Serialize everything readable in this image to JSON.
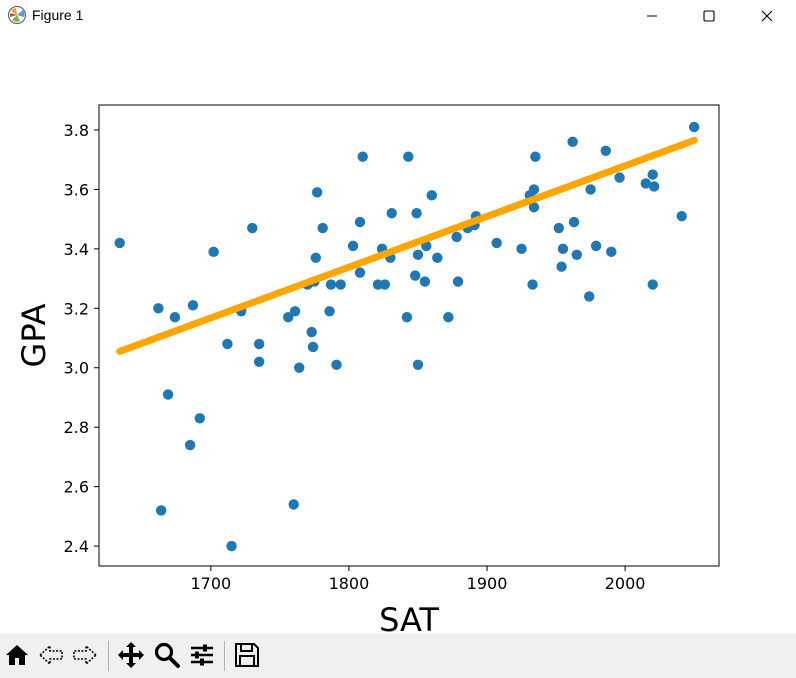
{
  "window": {
    "title": "Figure 1"
  },
  "icons": {
    "app": "matplotlib-figure-icon",
    "minimize": "minimize-icon",
    "maximize": "maximize-icon",
    "close": "close-icon"
  },
  "toolbar": {
    "buttons": [
      {
        "name": "home-icon",
        "tooltip": "Home"
      },
      {
        "name": "back-icon",
        "tooltip": "Back"
      },
      {
        "name": "forward-icon",
        "tooltip": "Forward"
      },
      {
        "name": "pan-icon",
        "tooltip": "Pan"
      },
      {
        "name": "zoom-icon",
        "tooltip": "Zoom"
      },
      {
        "name": "configure-subplots-icon",
        "tooltip": "Subplots"
      },
      {
        "name": "save-icon",
        "tooltip": "Save"
      }
    ]
  },
  "chart_data": {
    "type": "scatter",
    "xlabel": "SAT",
    "ylabel": "GPA",
    "xlim": [
      1619,
      2068
    ],
    "ylim": [
      2.333,
      3.884
    ],
    "xticks": [
      1700,
      1800,
      1900,
      2000
    ],
    "yticks": [
      2.4,
      2.6,
      2.8,
      3.0,
      3.2,
      3.4,
      3.6,
      3.8
    ],
    "grid": false,
    "scatter_color": "#1f77b4",
    "line_color": "#ffa500",
    "points": [
      [
        1634,
        3.42
      ],
      [
        1662,
        3.2
      ],
      [
        1664,
        2.52
      ],
      [
        1669,
        2.91
      ],
      [
        1674,
        3.17
      ],
      [
        1685,
        2.74
      ],
      [
        1687,
        3.21
      ],
      [
        1692,
        2.83
      ],
      [
        1702,
        3.39
      ],
      [
        1712,
        3.08
      ],
      [
        1715,
        2.4
      ],
      [
        1722,
        3.19
      ],
      [
        1730,
        3.47
      ],
      [
        1735,
        3.02
      ],
      [
        1735,
        3.08
      ],
      [
        1756,
        3.17
      ],
      [
        1760,
        2.54
      ],
      [
        1761,
        3.19
      ],
      [
        1764,
        3.0
      ],
      [
        1770,
        3.28
      ],
      [
        1773,
        3.12
      ],
      [
        1774,
        3.07
      ],
      [
        1775,
        3.29
      ],
      [
        1776,
        3.37
      ],
      [
        1777,
        3.59
      ],
      [
        1781,
        3.47
      ],
      [
        1786,
        3.19
      ],
      [
        1787,
        3.28
      ],
      [
        1791,
        3.01
      ],
      [
        1794,
        3.28
      ],
      [
        1803,
        3.41
      ],
      [
        1808,
        3.32
      ],
      [
        1808,
        3.49
      ],
      [
        1810,
        3.71
      ],
      [
        1821,
        3.28
      ],
      [
        1824,
        3.4
      ],
      [
        1826,
        3.28
      ],
      [
        1830,
        3.37
      ],
      [
        1831,
        3.52
      ],
      [
        1842,
        3.17
      ],
      [
        1843,
        3.71
      ],
      [
        1848,
        3.31
      ],
      [
        1849,
        3.52
      ],
      [
        1850,
        3.01
      ],
      [
        1850,
        3.38
      ],
      [
        1855,
        3.29
      ],
      [
        1856,
        3.41
      ],
      [
        1860,
        3.58
      ],
      [
        1864,
        3.37
      ],
      [
        1872,
        3.17
      ],
      [
        1878,
        3.44
      ],
      [
        1879,
        3.29
      ],
      [
        1886,
        3.47
      ],
      [
        1888,
        3.48
      ],
      [
        1891,
        3.48
      ],
      [
        1892,
        3.51
      ],
      [
        1907,
        3.42
      ],
      [
        1925,
        3.4
      ],
      [
        1931,
        3.58
      ],
      [
        1933,
        3.28
      ],
      [
        1934,
        3.6
      ],
      [
        1934,
        3.54
      ],
      [
        1935,
        3.71
      ],
      [
        1952,
        3.47
      ],
      [
        1954,
        3.34
      ],
      [
        1955,
        3.4
      ],
      [
        1962,
        3.76
      ],
      [
        1963,
        3.49
      ],
      [
        1965,
        3.38
      ],
      [
        1974,
        3.24
      ],
      [
        1975,
        3.6
      ],
      [
        1979,
        3.41
      ],
      [
        1986,
        3.73
      ],
      [
        1990,
        3.39
      ],
      [
        1996,
        3.64
      ],
      [
        2015,
        3.62
      ],
      [
        2020,
        3.65
      ],
      [
        2020,
        3.28
      ],
      [
        2021,
        3.61
      ],
      [
        2041,
        3.51
      ],
      [
        2050,
        3.81
      ]
    ],
    "regression_line": [
      [
        1634,
        3.055
      ],
      [
        2050,
        3.765
      ]
    ]
  }
}
